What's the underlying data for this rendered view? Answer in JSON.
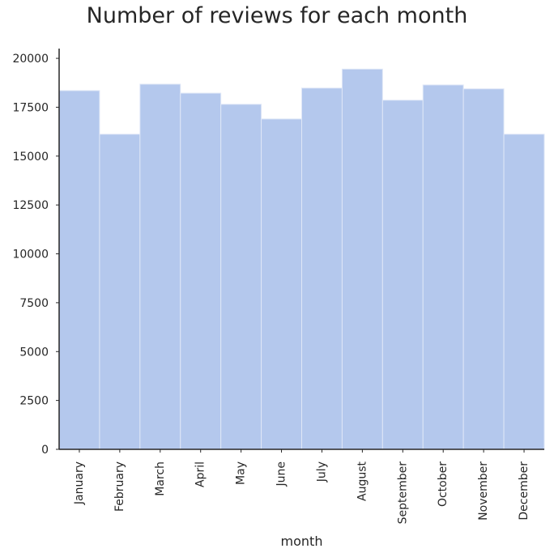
{
  "chart_data": {
    "type": "bar",
    "title": "Number of reviews for each month",
    "xlabel": "month",
    "ylabel": "",
    "categories": [
      "January",
      "February",
      "March",
      "April",
      "May",
      "June",
      "July",
      "August",
      "September",
      "October",
      "November",
      "December"
    ],
    "values": [
      18350,
      16120,
      18680,
      18220,
      17650,
      16900,
      18480,
      19450,
      17860,
      18640,
      18440,
      16120
    ],
    "ylim": [
      0,
      20500
    ],
    "yticks": [
      0,
      2500,
      5000,
      7500,
      10000,
      12500,
      15000,
      17500,
      20000
    ],
    "grid": false,
    "bar_color": "#b4c8ed",
    "bar_edge_color": "#dfe7f7"
  }
}
